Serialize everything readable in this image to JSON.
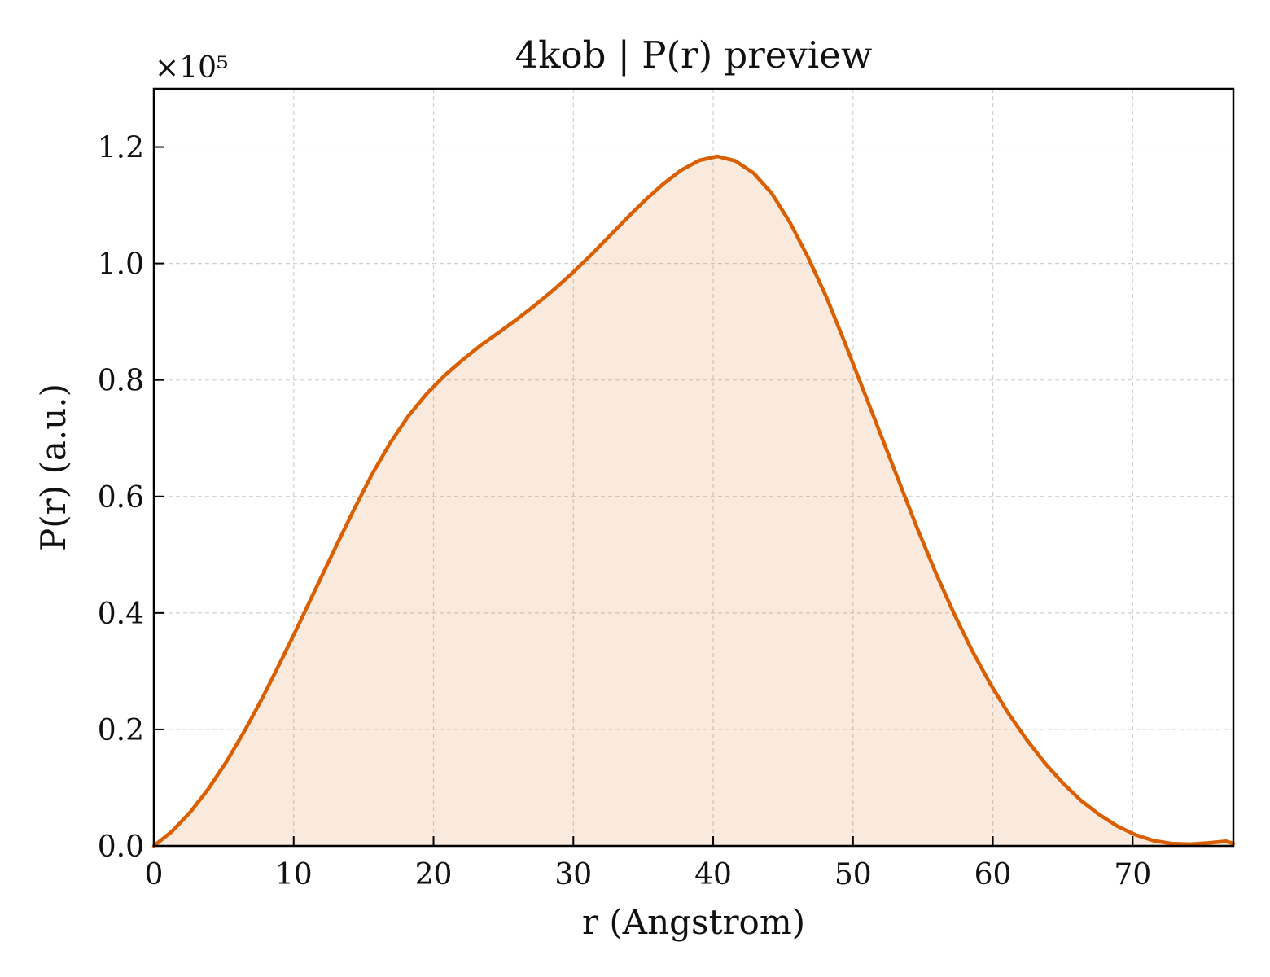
{
  "chart_data": {
    "type": "area",
    "title": "4kob | P(r) preview",
    "xlabel": "r (Angstrom)",
    "ylabel": "P(r) (a.u.)",
    "y_multiplier": "×10⁵",
    "xlim": [
      0,
      77.2
    ],
    "ylim": [
      0,
      1.3
    ],
    "xticks": [
      0,
      10,
      20,
      30,
      40,
      50,
      60,
      70
    ],
    "yticks": [
      0.0,
      0.2,
      0.4,
      0.6,
      0.8,
      1.0,
      1.2
    ],
    "xtick_labels": [
      "0",
      "10",
      "20",
      "30",
      "40",
      "50",
      "60",
      "70"
    ],
    "ytick_labels": [
      "0.0",
      "0.2",
      "0.4",
      "0.6",
      "0.8",
      "1.0",
      "1.2"
    ],
    "grid": true,
    "series": [
      {
        "color": "#d95f02",
        "fill_color": "#d95f02",
        "fill_opacity": 0.13,
        "x": [
          0,
          1.3,
          2.6,
          3.9,
          5.2,
          6.5,
          7.8,
          9.1,
          10.4,
          11.7,
          13.0,
          14.3,
          15.6,
          16.9,
          18.2,
          19.5,
          20.8,
          22.1,
          23.4,
          24.7,
          26.0,
          27.3,
          28.6,
          29.9,
          31.2,
          32.5,
          33.8,
          35.1,
          36.4,
          37.7,
          39.0,
          40.3,
          41.6,
          42.9,
          44.2,
          45.5,
          46.8,
          48.1,
          49.4,
          50.7,
          52.0,
          53.3,
          54.6,
          55.9,
          57.2,
          58.5,
          59.8,
          61.1,
          62.4,
          63.7,
          65.0,
          66.3,
          67.6,
          68.9,
          70.2,
          71.5,
          72.8,
          74.1,
          75.4,
          76.7,
          77.2
        ],
        "y": [
          0.0,
          0.025,
          0.058,
          0.098,
          0.145,
          0.198,
          0.256,
          0.318,
          0.382,
          0.448,
          0.513,
          0.577,
          0.638,
          0.692,
          0.738,
          0.776,
          0.808,
          0.835,
          0.86,
          0.882,
          0.905,
          0.929,
          0.955,
          0.983,
          1.013,
          1.045,
          1.077,
          1.108,
          1.136,
          1.16,
          1.177,
          1.184,
          1.176,
          1.155,
          1.12,
          1.07,
          1.01,
          0.942,
          0.865,
          0.785,
          0.705,
          0.625,
          0.545,
          0.47,
          0.4,
          0.336,
          0.279,
          0.228,
          0.183,
          0.143,
          0.108,
          0.078,
          0.054,
          0.034,
          0.019,
          0.009,
          0.004,
          0.003,
          0.005,
          0.008,
          0.004
        ]
      }
    ]
  }
}
